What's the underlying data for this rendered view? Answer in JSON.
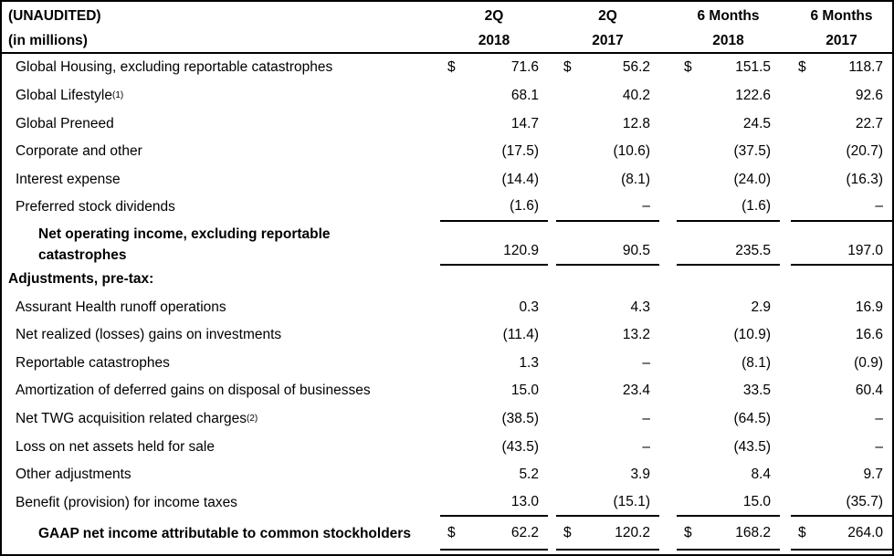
{
  "table": {
    "title_left": "(UNAUDITED)",
    "subtitle_left": "(in millions)",
    "columns": [
      {
        "period": "2Q",
        "year": "2018"
      },
      {
        "period": "2Q",
        "year": "2017"
      },
      {
        "period": "6 Months",
        "year": "2018"
      },
      {
        "period": "6 Months",
        "year": "2017"
      }
    ],
    "currency_symbol": "$",
    "nil_symbol": "–",
    "text_color": "#000000",
    "background_color": "#ffffff",
    "rows": [
      {
        "label": "Global Housing, excluding reportable catastrophes",
        "style": "item",
        "dollar": true,
        "values": [
          "71.6",
          "56.2",
          "151.5",
          "118.7"
        ]
      },
      {
        "label": "Global Lifestyle",
        "sup": "(1)",
        "style": "item",
        "values": [
          "68.1",
          "40.2",
          "122.6",
          "92.6"
        ]
      },
      {
        "label": "Global Preneed",
        "style": "item",
        "values": [
          "14.7",
          "12.8",
          "24.5",
          "22.7"
        ]
      },
      {
        "label": "Corporate and other",
        "style": "item",
        "values": [
          "(17.5)",
          "(10.6)",
          "(37.5)",
          "(20.7)"
        ]
      },
      {
        "label": "Interest expense",
        "style": "item",
        "values": [
          "(14.4)",
          "(8.1)",
          "(24.0)",
          "(16.3)"
        ]
      },
      {
        "label": "Preferred stock dividends",
        "style": "item",
        "rule": true,
        "values": [
          "(1.6)",
          "–",
          "(1.6)",
          "–"
        ]
      },
      {
        "label": "Net operating income, excluding reportable catastrophes",
        "label_lines": [
          "Net operating income, excluding reportable",
          "catastrophes"
        ],
        "style": "subtotal",
        "twoline": true,
        "rule": true,
        "values": [
          "120.9",
          "90.5",
          "235.5",
          "197.0"
        ]
      },
      {
        "label": "Adjustments, pre-tax:",
        "style": "section",
        "values": [
          "",
          "",
          "",
          ""
        ]
      },
      {
        "label": "Assurant Health runoff operations",
        "style": "item",
        "values": [
          "0.3",
          "4.3",
          "2.9",
          "16.9"
        ]
      },
      {
        "label": "Net realized (losses) gains on investments",
        "style": "item",
        "values": [
          "(11.4)",
          "13.2",
          "(10.9)",
          "16.6"
        ]
      },
      {
        "label": "Reportable catastrophes",
        "style": "item",
        "values": [
          "1.3",
          "–",
          "(8.1)",
          "(0.9)"
        ]
      },
      {
        "label": "Amortization of deferred gains on disposal of businesses",
        "style": "item",
        "values": [
          "15.0",
          "23.4",
          "33.5",
          "60.4"
        ]
      },
      {
        "label": "Net TWG acquisition related charges",
        "sup": "(2)",
        "style": "item",
        "values": [
          "(38.5)",
          "–",
          "(64.5)",
          "–"
        ]
      },
      {
        "label": "Loss on net assets held for sale",
        "style": "item",
        "values": [
          "(43.5)",
          "–",
          "(43.5)",
          "–"
        ]
      },
      {
        "label": "Other adjustments",
        "style": "item",
        "values": [
          "5.2",
          "3.9",
          "8.4",
          "9.7"
        ]
      },
      {
        "label": "Benefit (provision) for income taxes",
        "style": "item",
        "rule": true,
        "values": [
          "13.0",
          "(15.1)",
          "15.0",
          "(35.7)"
        ]
      },
      {
        "label": "GAAP net income attributable to common stockholders",
        "style": "total",
        "dollar": true,
        "rule": true,
        "values": [
          "62.2",
          "120.2",
          "168.2",
          "264.0"
        ]
      }
    ]
  }
}
